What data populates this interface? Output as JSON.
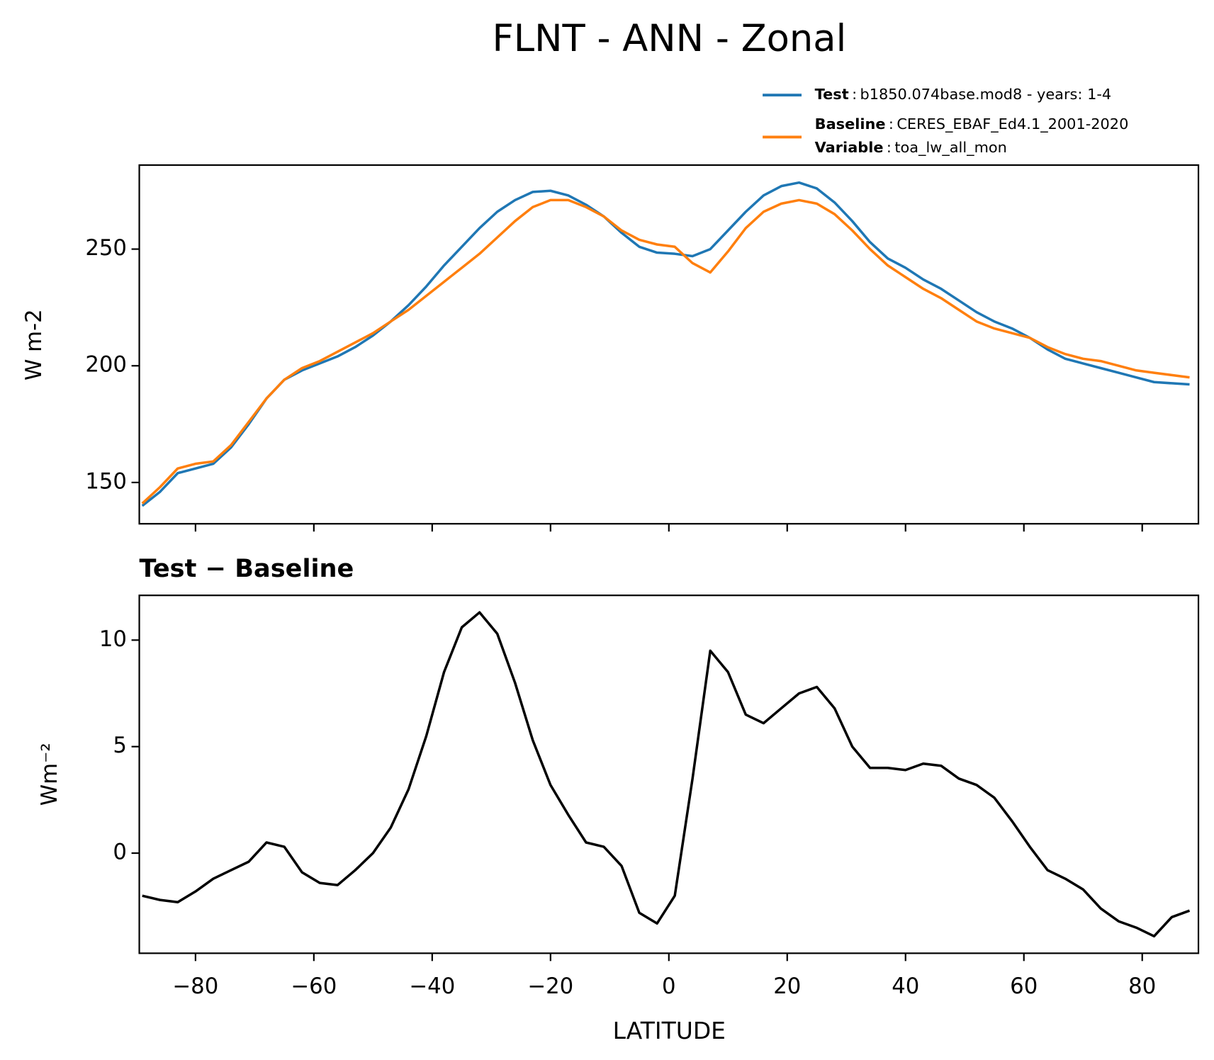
{
  "chart_data": [
    {
      "type": "line",
      "title": "FLNT - ANN - Zonal",
      "ylabel": "W m-2",
      "x": [
        -89,
        -86,
        -83,
        -80,
        -77,
        -74,
        -71,
        -68,
        -65,
        -62,
        -59,
        -56,
        -53,
        -50,
        -47,
        -44,
        -41,
        -38,
        -35,
        -32,
        -29,
        -26,
        -23,
        -20,
        -17,
        -14,
        -11,
        -8,
        -5,
        -2,
        1,
        4,
        7,
        10,
        13,
        16,
        19,
        22,
        25,
        28,
        31,
        34,
        37,
        40,
        43,
        46,
        49,
        52,
        55,
        58,
        61,
        64,
        67,
        70,
        73,
        76,
        79,
        82,
        85,
        88
      ],
      "series": [
        {
          "name": "Test",
          "label": "b1850.074base.mod8 - years: 1-4",
          "color": "#1f77b4",
          "values": [
            140,
            146,
            154,
            156,
            158,
            165,
            175,
            186,
            194,
            198,
            201,
            204,
            208,
            213,
            219,
            226,
            234,
            243,
            251,
            259,
            266,
            271,
            274.5,
            275,
            273,
            269,
            264,
            257,
            251,
            248.5,
            248,
            247,
            250,
            258,
            266,
            273,
            277,
            278.5,
            276,
            270,
            262,
            253,
            246,
            242,
            237,
            233,
            228,
            223,
            219,
            216,
            212,
            207,
            203,
            201,
            199,
            197,
            195,
            193,
            192.5,
            192
          ]
        },
        {
          "name": "Baseline",
          "label": "CERES_EBAF_Ed4.1_2001-2020",
          "color": "#ff7f0e",
          "values": [
            141,
            148,
            156,
            158,
            159,
            166,
            176,
            186,
            194,
            199,
            202,
            206,
            210,
            214,
            219,
            224,
            230,
            236,
            242,
            248,
            255,
            262,
            268,
            271,
            271,
            268,
            264,
            258,
            254,
            252,
            251,
            244,
            240,
            249,
            259,
            266,
            269.5,
            271,
            269.5,
            265,
            258,
            250,
            243,
            238,
            233,
            229,
            224,
            219,
            216,
            214,
            212,
            208,
            205,
            203,
            202,
            200,
            198,
            197,
            196,
            195
          ]
        }
      ],
      "legend_separator": ":",
      "legend_extra": {
        "name": "Variable",
        "label": "toa_lw_all_mon"
      },
      "xlim": [
        -89.5,
        89.5
      ],
      "xticks": [
        -80,
        -60,
        -40,
        -20,
        0,
        20,
        40,
        60,
        80
      ],
      "ylim": [
        132.3,
        286
      ],
      "yticks": [
        150,
        200,
        250
      ]
    },
    {
      "type": "line",
      "title": "Test − Baseline",
      "xlabel": "LATITUDE",
      "ylabel": "Wm⁻²",
      "x": [
        -89,
        -86,
        -83,
        -80,
        -77,
        -74,
        -71,
        -68,
        -65,
        -62,
        -59,
        -56,
        -53,
        -50,
        -47,
        -44,
        -41,
        -38,
        -35,
        -32,
        -29,
        -26,
        -23,
        -20,
        -17,
        -14,
        -11,
        -8,
        -5,
        -2,
        1,
        4,
        7,
        10,
        13,
        16,
        19,
        22,
        25,
        28,
        31,
        34,
        37,
        40,
        43,
        46,
        49,
        52,
        55,
        58,
        61,
        64,
        67,
        70,
        73,
        76,
        79,
        82,
        85,
        88
      ],
      "series": [
        {
          "color": "#000000",
          "values": [
            -2.0,
            -2.2,
            -2.3,
            -1.8,
            -1.2,
            -0.8,
            -0.4,
            0.5,
            0.3,
            -0.9,
            -1.4,
            -1.5,
            -0.8,
            0,
            1.2,
            3.0,
            5.5,
            8.5,
            10.6,
            11.3,
            10.3,
            8.0,
            5.3,
            3.2,
            1.8,
            0.5,
            0.3,
            -0.6,
            -2.8,
            -3.3,
            -2.0,
            3.5,
            9.5,
            8.5,
            6.5,
            6.1,
            6.8,
            7.5,
            7.8,
            6.8,
            5.0,
            4.0,
            4.0,
            3.9,
            4.2,
            4.1,
            3.5,
            3.2,
            2.6,
            1.5,
            0.3,
            -0.8,
            -1.2,
            -1.7,
            -2.6,
            -3.2,
            -3.5,
            -3.9,
            -3.0,
            -2.7
          ]
        }
      ],
      "xlim": [
        -89.5,
        89.5
      ],
      "xticks": [
        {
          "value": -80,
          "label": "−80"
        },
        {
          "value": -60,
          "label": "−60"
        },
        {
          "value": -40,
          "label": "−40"
        },
        {
          "value": -20,
          "label": "−20"
        },
        0,
        20,
        40,
        60,
        80
      ],
      "ylim": [
        -4.7,
        12.1
      ],
      "yticks": [
        0,
        5,
        10
      ]
    }
  ]
}
